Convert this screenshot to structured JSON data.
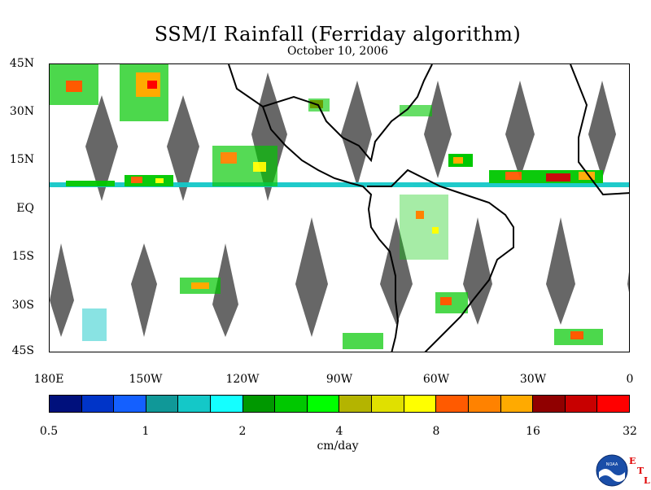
{
  "title": "SSM/I Rainfall (Ferriday algorithm)",
  "date": "October 10, 2006",
  "map": {
    "lat_labels": [
      "45N",
      "30N",
      "15N",
      "EQ",
      "15S",
      "30S",
      "45S"
    ],
    "lon_labels": [
      "180E",
      "150W",
      "120W",
      "90W",
      "60W",
      "30W",
      "0"
    ],
    "swath_gap_color": "#676767",
    "land_outline_color": "#000000",
    "lon_range": [
      -180,
      0
    ],
    "lat_range": [
      -45,
      45
    ]
  },
  "colorbar": {
    "colors": [
      "#00107c",
      "#0034c8",
      "#1460ff",
      "#109898",
      "#14c8c8",
      "#14ffff",
      "#009800",
      "#00c800",
      "#00ff00",
      "#b4b400",
      "#e0e000",
      "#ffff00",
      "#ff5a00",
      "#ff8200",
      "#ffaa00",
      "#900000",
      "#c80000",
      "#ff0000"
    ],
    "tick_labels": [
      "0.5",
      "1",
      "2",
      "4",
      "8",
      "16",
      "32"
    ],
    "units": "cm/day"
  },
  "logo": {
    "icon": "noaa-logo-icon",
    "text": "NOAA",
    "etl_letters": [
      "E",
      "T",
      "L"
    ]
  }
}
